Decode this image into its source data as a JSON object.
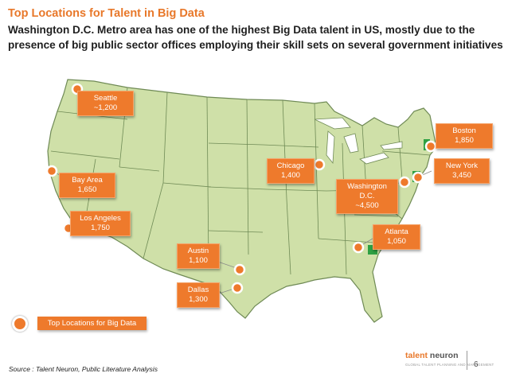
{
  "title": "Top Locations for Talent in Big Data",
  "headline": "Washington D.C. Metro area has one of the highest Big Data talent in US, mostly due to the presence of big public sector offices employing their skill sets on several government initiatives",
  "locations": [
    {
      "id": "seattle",
      "name": "Seattle",
      "value": "~1,200"
    },
    {
      "id": "bay-area",
      "name": "Bay Area",
      "value": "1,650"
    },
    {
      "id": "los-angeles",
      "name": "Los Angeles",
      "value": "1,750"
    },
    {
      "id": "austin",
      "name": "Austin",
      "value": "1,100"
    },
    {
      "id": "dallas",
      "name": "Dallas",
      "value": "1,300"
    },
    {
      "id": "chicago",
      "name": "Chicago",
      "value": "1,400"
    },
    {
      "id": "washington-dc",
      "name": "Washington D.C.",
      "value": "~4,500"
    },
    {
      "id": "atlanta",
      "name": "Atlanta",
      "value": "1,050"
    },
    {
      "id": "boston",
      "name": "Boston",
      "value": "1,850"
    },
    {
      "id": "new-york",
      "name": "New York",
      "value": "3,450"
    }
  ],
  "legend": {
    "label": "Top Locations for Big Data"
  },
  "source": "Source : Talent Neuron, Public Literature Analysis",
  "brand": {
    "name_part1": "talent",
    "name_part2": " neuron",
    "tagline": "GLOBAL TALENT PLANNING AND MANAGEMENT"
  },
  "page_number": "6",
  "colors": {
    "accent": "#ee7a2c",
    "land": "#cfe0a8",
    "border": "#6f8a55"
  }
}
